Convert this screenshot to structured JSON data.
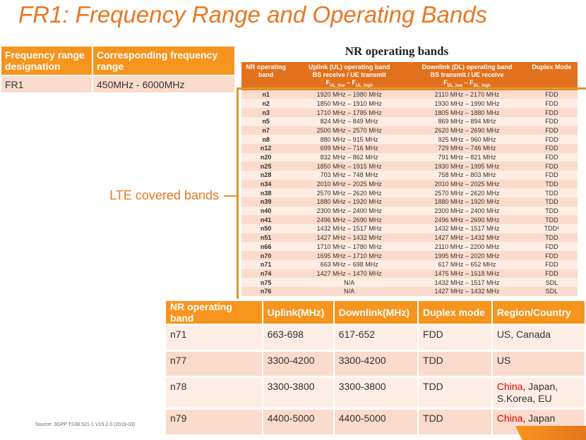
{
  "title": "FR1: Frequency Range and Operating Bands",
  "fr_table": {
    "headers": [
      "Frequency range designation",
      "Corresponding frequency range"
    ],
    "rows": [
      [
        "FR1",
        "450MHz - 6000MHz"
      ]
    ]
  },
  "nr_bands": {
    "title": "NR operating bands",
    "headers": {
      "band": "NR operating band",
      "ul_1": "Uplink (UL) operating band",
      "ul_2": "BS receive / UE transmit",
      "ul_f": "F",
      "ul_low": "UL_low",
      "ul_dash": " – F",
      "ul_high": "UL_high",
      "dl_1": "Downlink (DL) operating band",
      "dl_2": "BS transmit / UE receive",
      "dl_f": "F",
      "dl_low": "DL_low",
      "dl_dash": " – F",
      "dl_high": "DL_high",
      "duplex": "Duplex Mode"
    },
    "rows": [
      [
        "n1",
        "1920 MHz – 1980 MHz",
        "2110 MHz – 2170 MHz",
        "FDD"
      ],
      [
        "n2",
        "1850 MHz – 1910 MHz",
        "1930 MHz – 1990 MHz",
        "FDD"
      ],
      [
        "n3",
        "1710 MHz – 1785 MHz",
        "1805 MHz – 1880 MHz",
        "FDD"
      ],
      [
        "n5",
        "824 MHz – 849 MHz",
        "869 MHz – 894 MHz",
        "FDD"
      ],
      [
        "n7",
        "2500 MHz – 2570 MHz",
        "2620 MHz – 2690 MHz",
        "FDD"
      ],
      [
        "n8",
        "880 MHz – 915 MHz",
        "925 MHz – 960 MHz",
        "FDD"
      ],
      [
        "n12",
        "699 MHz – 716 MHz",
        "729 MHz – 746 MHz",
        "FDD"
      ],
      [
        "n20",
        "832 MHz – 862 MHz",
        "791 MHz – 821 MHz",
        "FDD"
      ],
      [
        "n25",
        "1850 MHz – 1915 MHz",
        "1930 MHz – 1995 MHz",
        "FDD"
      ],
      [
        "n28",
        "703 MHz – 748 MHz",
        "758 MHz – 803 MHz",
        "FDD"
      ],
      [
        "n34",
        "2010 MHz – 2025 MHz",
        "2010 MHz – 2025 MHz",
        "TDD"
      ],
      [
        "n38",
        "2570 MHz – 2620 MHz",
        "2570 MHz – 2620 MHz",
        "TDD"
      ],
      [
        "n39",
        "1880 MHz – 1920 MHz",
        "1880 MHz – 1920 MHz",
        "TDD"
      ],
      [
        "n40",
        "2300 MHz – 2400 MHz",
        "2300 MHz – 2400 MHz",
        "TDD"
      ],
      [
        "n41",
        "2496 MHz – 2690 MHz",
        "2496 MHz – 2690 MHz",
        "TDD"
      ],
      [
        "n50",
        "1432 MHz – 1517 MHz",
        "1432 MHz – 1517 MHz",
        "TDD¹"
      ],
      [
        "n51",
        "1427 MHz – 1432 MHz",
        "1427 MHz – 1432 MHz",
        "TDD"
      ],
      [
        "n66",
        "1710 MHz – 1780 MHz",
        "2110 MHz – 2200 MHz",
        "FDD"
      ],
      [
        "n70",
        "1695 MHz – 1710 MHz",
        "1995 MHz – 2020 MHz",
        "FDD"
      ],
      [
        "n71",
        "663 MHz – 698 MHz",
        "617 MHz – 652 MHz",
        "FDD"
      ],
      [
        "n74",
        "1427 MHz – 1470 MHz",
        "1475 MHz – 1518 MHz",
        "FDD"
      ],
      [
        "n75",
        "N/A",
        "1432 MHz – 1517 MHz",
        "SDL"
      ],
      [
        "n76",
        "N/A",
        "1427 MHz – 1432 MHz",
        "SDL"
      ]
    ]
  },
  "lte_label": "LTE covered bands",
  "region_table": {
    "headers": [
      "NR operating band",
      "Uplink(MHz)",
      "Downlink(MHz)",
      "Duplex mode",
      "Region/Country"
    ],
    "rows": [
      {
        "band": "n71",
        "ul": "663-698",
        "dl": "617-652",
        "duplex": "FDD",
        "highlight": "",
        "region": "US, Canada"
      },
      {
        "band": "n77",
        "ul": "3300-4200",
        "dl": "3300-4200",
        "duplex": "TDD",
        "highlight": "",
        "region": "US"
      },
      {
        "band": "n78",
        "ul": "3300-3800",
        "dl": "3300-3800",
        "duplex": "TDD",
        "highlight": "China",
        "region": ", Japan, S.Korea, EU"
      },
      {
        "band": "n79",
        "ul": "4400-5000",
        "dl": "4400-5000",
        "duplex": "TDD",
        "highlight": "China",
        "region": ", Japan"
      }
    ]
  },
  "source": "Source: 3GPP TS38.521-1 V15.2.0 (2019-03)",
  "colors": {
    "accent": "#F7941D",
    "dark_accent": "#E2711D",
    "title": "#E87722",
    "row_a": "#FBDBCB",
    "row_b": "#FDEDE4",
    "highlight": "#E00000"
  }
}
